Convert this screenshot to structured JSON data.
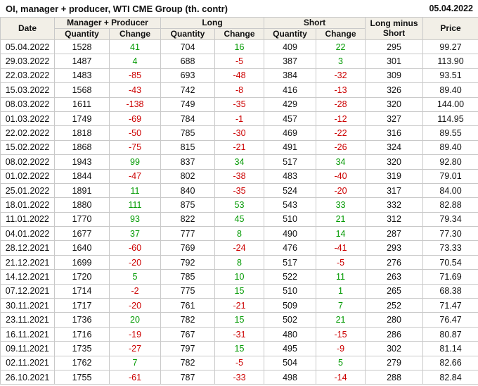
{
  "title": "OI, manager + producer, WTI CME Group (th. contr)",
  "report_date": "05.04.2022",
  "table": {
    "group_headers": {
      "date": "Date",
      "manager_producer": "Manager + Producer",
      "long": "Long",
      "short": "Short",
      "long_minus_short": "Long minus Short",
      "price": "Price"
    },
    "sub_headers": {
      "quantity": "Quantity",
      "change": "Change"
    }
  },
  "colors": {
    "positive_change": "#009900",
    "negative_change": "#cc0000",
    "header_background": "#f2efe7",
    "table_border": "#c9c9c9"
  },
  "chart_data": {
    "type": "table",
    "title": "OI, manager + producer, WTI CME Group (th. contr)",
    "columns": [
      "Date",
      "Manager + Producer Quantity",
      "Manager + Producer Change",
      "Long Quantity",
      "Long Change",
      "Short Quantity",
      "Short Change",
      "Long minus Short",
      "Price"
    ],
    "rows": [
      [
        "05.04.2022",
        "1528",
        "41",
        "704",
        "16",
        "409",
        "22",
        "295",
        "99.27"
      ],
      [
        "29.03.2022",
        "1487",
        "4",
        "688",
        "-5",
        "387",
        "3",
        "301",
        "113.90"
      ],
      [
        "22.03.2022",
        "1483",
        "-85",
        "693",
        "-48",
        "384",
        "-32",
        "309",
        "93.51"
      ],
      [
        "15.03.2022",
        "1568",
        "-43",
        "742",
        "-8",
        "416",
        "-13",
        "326",
        "89.40"
      ],
      [
        "08.03.2022",
        "1611",
        "-138",
        "749",
        "-35",
        "429",
        "-28",
        "320",
        "144.00"
      ],
      [
        "01.03.2022",
        "1749",
        "-69",
        "784",
        "-1",
        "457",
        "-12",
        "327",
        "114.95"
      ],
      [
        "22.02.2022",
        "1818",
        "-50",
        "785",
        "-30",
        "469",
        "-22",
        "316",
        "89.55"
      ],
      [
        "15.02.2022",
        "1868",
        "-75",
        "815",
        "-21",
        "491",
        "-26",
        "324",
        "89.40"
      ],
      [
        "08.02.2022",
        "1943",
        "99",
        "837",
        "34",
        "517",
        "34",
        "320",
        "92.80"
      ],
      [
        "01.02.2022",
        "1844",
        "-47",
        "802",
        "-38",
        "483",
        "-40",
        "319",
        "79.01"
      ],
      [
        "25.01.2022",
        "1891",
        "11",
        "840",
        "-35",
        "524",
        "-20",
        "317",
        "84.00"
      ],
      [
        "18.01.2022",
        "1880",
        "111",
        "875",
        "53",
        "543",
        "33",
        "332",
        "82.88"
      ],
      [
        "11.01.2022",
        "1770",
        "93",
        "822",
        "45",
        "510",
        "21",
        "312",
        "79.34"
      ],
      [
        "04.01.2022",
        "1677",
        "37",
        "777",
        "8",
        "490",
        "14",
        "287",
        "77.30"
      ],
      [
        "28.12.2021",
        "1640",
        "-60",
        "769",
        "-24",
        "476",
        "-41",
        "293",
        "73.33"
      ],
      [
        "21.12.2021",
        "1699",
        "-20",
        "792",
        "8",
        "517",
        "-5",
        "276",
        "70.54"
      ],
      [
        "14.12.2021",
        "1720",
        "5",
        "785",
        "10",
        "522",
        "11",
        "263",
        "71.69"
      ],
      [
        "07.12.2021",
        "1714",
        "-2",
        "775",
        "15",
        "510",
        "1",
        "265",
        "68.38"
      ],
      [
        "30.11.2021",
        "1717",
        "-20",
        "761",
        "-21",
        "509",
        "7",
        "252",
        "71.47"
      ],
      [
        "23.11.2021",
        "1736",
        "20",
        "782",
        "15",
        "502",
        "21",
        "280",
        "76.47"
      ],
      [
        "16.11.2021",
        "1716",
        "-19",
        "767",
        "-31",
        "480",
        "-15",
        "286",
        "80.87"
      ],
      [
        "09.11.2021",
        "1735",
        "-27",
        "797",
        "15",
        "495",
        "-9",
        "302",
        "81.14"
      ],
      [
        "02.11.2021",
        "1762",
        "7",
        "782",
        "-5",
        "504",
        "5",
        "279",
        "82.66"
      ],
      [
        "26.10.2021",
        "1755",
        "-61",
        "787",
        "-33",
        "498",
        "-14",
        "288",
        "82.84"
      ]
    ]
  }
}
